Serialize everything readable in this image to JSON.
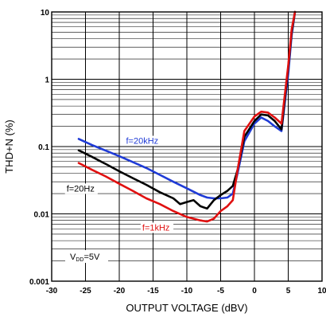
{
  "chart_data": {
    "type": "line",
    "xlabel": "OUTPUT VOLTAGE (dBV)",
    "ylabel": "THD+N (%)",
    "xlim": [
      -30,
      10
    ],
    "ylim": [
      0.001,
      10
    ],
    "yscale": "log",
    "grid": true,
    "x_ticks": [
      "-30",
      "-25",
      "-20",
      "-15",
      "-10",
      "-5",
      "0",
      "5",
      "10"
    ],
    "x_tick_values": [
      -30,
      -25,
      -20,
      -15,
      -10,
      -5,
      0,
      5,
      10
    ],
    "y_ticks": [
      "0.001",
      "0.01",
      "0.1",
      "1",
      "10"
    ],
    "y_tick_values": [
      0.001,
      0.01,
      0.1,
      1,
      10
    ],
    "annotations": {
      "vdd": {
        "main": "V",
        "sub": "DD",
        "rest": "=5V"
      }
    },
    "series": [
      {
        "name": "f=20kHz",
        "color": "#1f3bd6",
        "x": [
          -26,
          -24,
          -22,
          -20,
          -18,
          -16,
          -14,
          -12,
          -10,
          -8,
          -7,
          -6,
          -5,
          -4,
          -3.2,
          -2.5,
          -1.5,
          0,
          1,
          2,
          3,
          4,
          5,
          5.5,
          6
        ],
        "y": [
          0.13,
          0.105,
          0.087,
          0.072,
          0.059,
          0.048,
          0.038,
          0.03,
          0.024,
          0.019,
          0.0175,
          0.017,
          0.017,
          0.0175,
          0.02,
          0.04,
          0.12,
          0.22,
          0.27,
          0.24,
          0.2,
          0.17,
          1.2,
          4.5,
          10
        ]
      },
      {
        "name": "f=20Hz",
        "color": "#000000",
        "x": [
          -26,
          -24,
          -22,
          -20,
          -18,
          -16,
          -14,
          -12,
          -11,
          -10,
          -9,
          -8,
          -7,
          -6,
          -5,
          -4,
          -3.2,
          -2.5,
          -1.5,
          0,
          1,
          2,
          3,
          4,
          5,
          5.5,
          6
        ],
        "y": [
          0.088,
          0.07,
          0.055,
          0.043,
          0.034,
          0.027,
          0.021,
          0.017,
          0.014,
          0.015,
          0.016,
          0.013,
          0.012,
          0.016,
          0.019,
          0.022,
          0.026,
          0.045,
          0.14,
          0.24,
          0.3,
          0.29,
          0.24,
          0.18,
          1.5,
          5,
          10
        ]
      },
      {
        "name": "f=1kHz",
        "color": "#e01010",
        "x": [
          -26,
          -24,
          -22,
          -20,
          -18,
          -16,
          -14,
          -12,
          -10,
          -8,
          -7,
          -6,
          -5,
          -4,
          -3.2,
          -2.5,
          -1.5,
          0,
          1,
          2,
          3,
          4,
          5,
          5.5,
          6
        ],
        "y": [
          0.057,
          0.045,
          0.036,
          0.028,
          0.022,
          0.017,
          0.014,
          0.011,
          0.009,
          0.008,
          0.0077,
          0.0085,
          0.011,
          0.013,
          0.016,
          0.045,
          0.17,
          0.28,
          0.33,
          0.32,
          0.27,
          0.22,
          1.6,
          5.5,
          10
        ]
      }
    ],
    "series_labels": [
      {
        "text": "f=20kHz",
        "color": "#1f3bd6",
        "at_x": -19,
        "at_y": 0.11
      },
      {
        "text": "f=20Hz",
        "color": "#000000",
        "at_x": -27.8,
        "at_y": 0.0215
      },
      {
        "text": "f=1kHz",
        "color": "#e01010",
        "at_x": -16.6,
        "at_y": 0.00565
      }
    ]
  }
}
